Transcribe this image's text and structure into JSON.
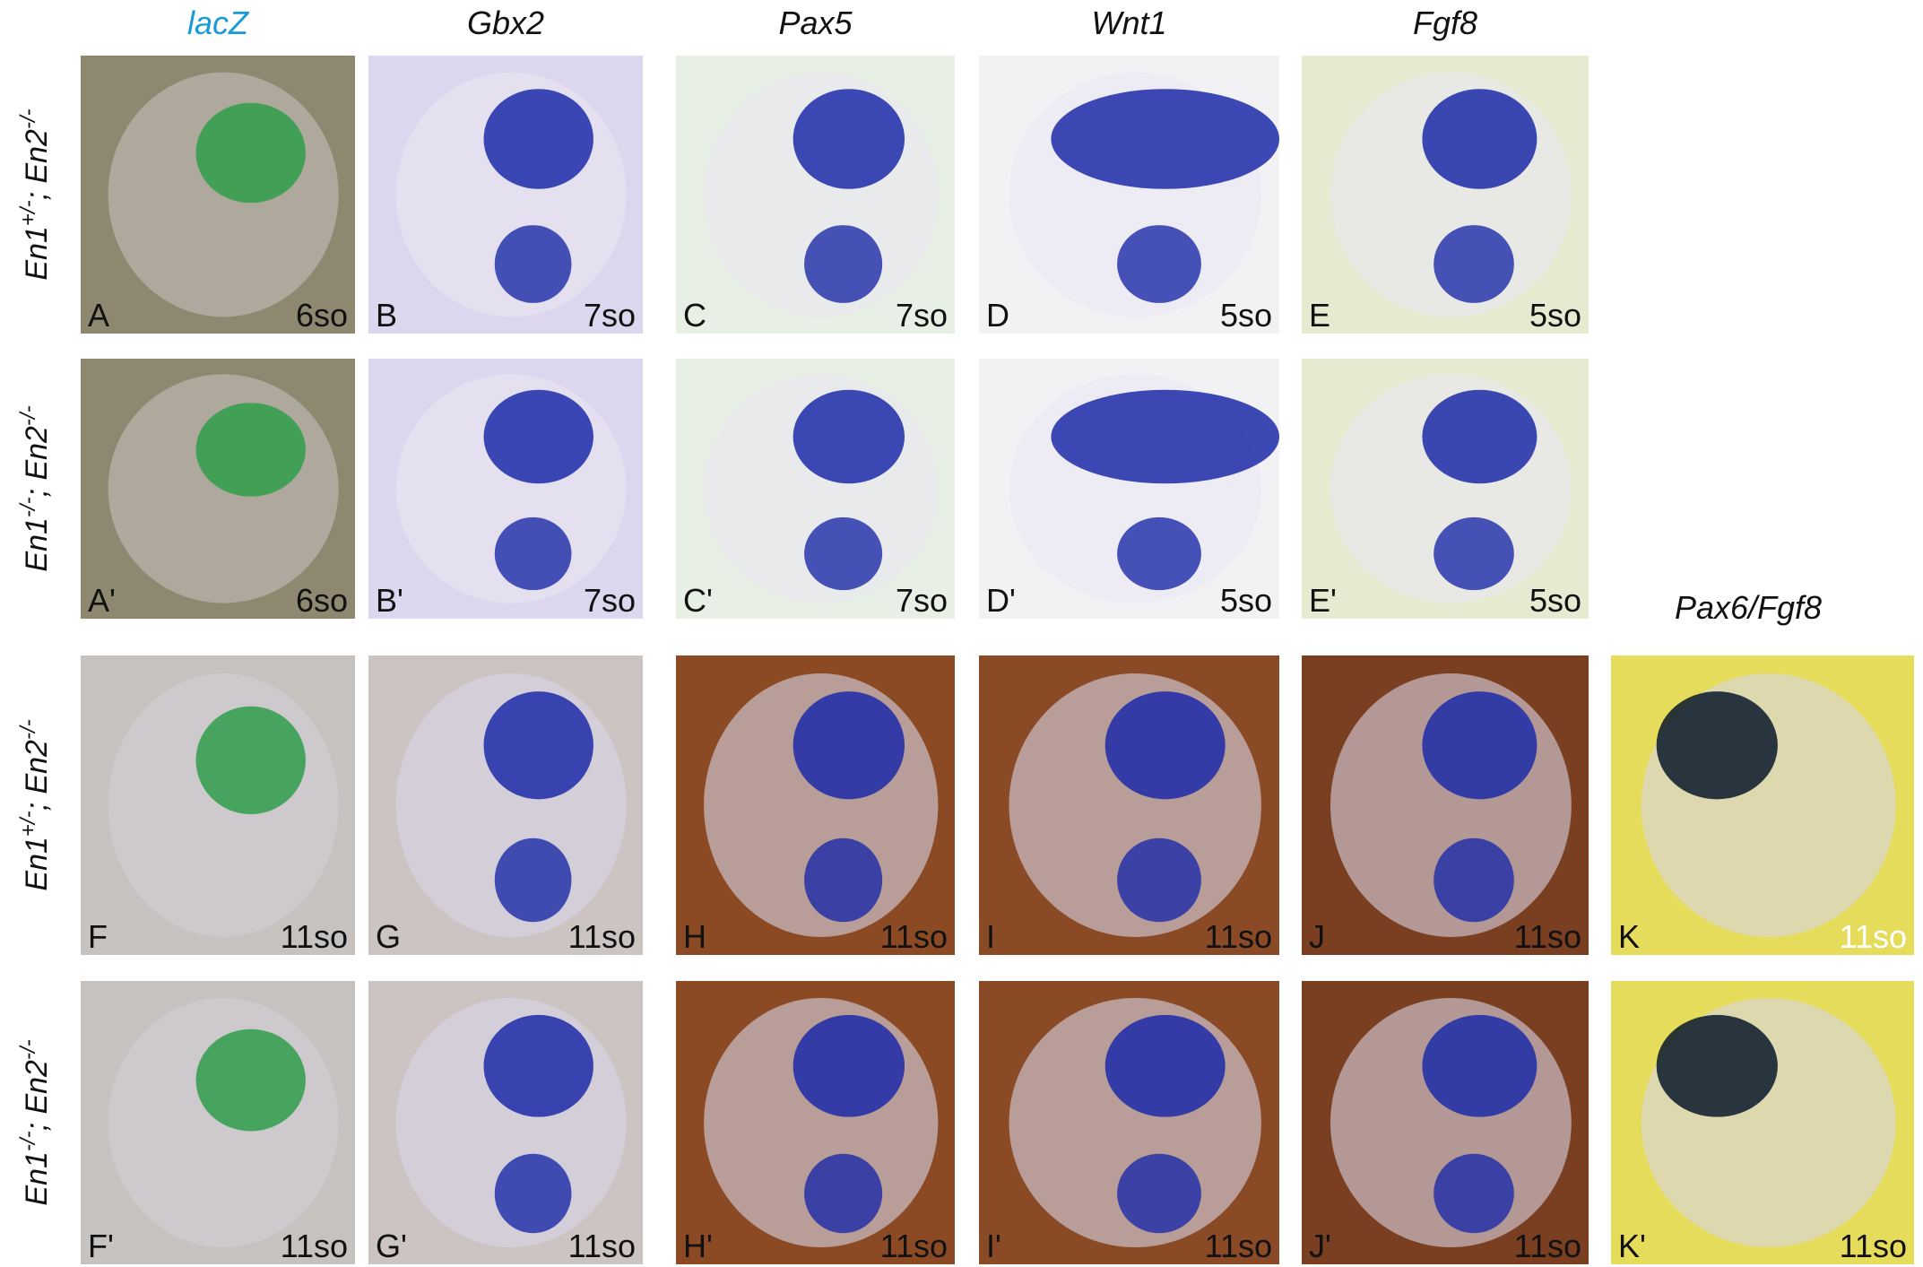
{
  "column_headers": [
    "lacZ",
    "Gbx2",
    "Pax5",
    "Wnt1",
    "Fgf8"
  ],
  "extra_header": "Pax6/Fgf8",
  "rows": [
    {
      "label": [
        "En1",
        "+/-",
        "; En2",
        "-/-"
      ],
      "panels": [
        {
          "letter": "A",
          "stage": "6so"
        },
        {
          "letter": "B",
          "stage": "7so"
        },
        {
          "letter": "C",
          "stage": "7so"
        },
        {
          "letter": "D",
          "stage": "5so"
        },
        {
          "letter": "E",
          "stage": "5so"
        }
      ]
    },
    {
      "label": [
        "En1",
        "-/-",
        "; En2",
        "-/-"
      ],
      "panels": [
        {
          "letter": "A'",
          "stage": "6so"
        },
        {
          "letter": "B'",
          "stage": "7so"
        },
        {
          "letter": "C'",
          "stage": "7so"
        },
        {
          "letter": "D'",
          "stage": "5so"
        },
        {
          "letter": "E'",
          "stage": "5so"
        }
      ]
    },
    {
      "label": [
        "En1",
        "+/-",
        "; En2",
        "-/-"
      ],
      "panels": [
        {
          "letter": "F",
          "stage": "11so"
        },
        {
          "letter": "G",
          "stage": "11so"
        },
        {
          "letter": "H",
          "stage": "11so"
        },
        {
          "letter": "I",
          "stage": "11so"
        },
        {
          "letter": "J",
          "stage": "11so"
        },
        {
          "letter": "K",
          "stage": "11so"
        }
      ]
    },
    {
      "label": [
        "En1",
        "-/-",
        "; En2",
        "-/-"
      ],
      "panels": [
        {
          "letter": "F'",
          "stage": "11so"
        },
        {
          "letter": "G'",
          "stage": "11so"
        },
        {
          "letter": "H'",
          "stage": "11so"
        },
        {
          "letter": "I'",
          "stage": "11so"
        },
        {
          "letter": "J'",
          "stage": "11so"
        },
        {
          "letter": "K'",
          "stage": "11so"
        }
      ]
    }
  ]
}
